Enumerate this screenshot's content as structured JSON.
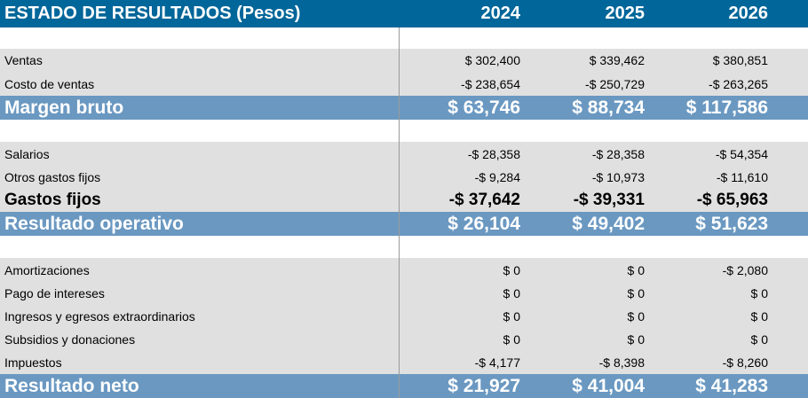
{
  "header": {
    "title": "ESTADO DE RESULTADOS (Pesos)",
    "years": [
      "2024",
      "2025",
      "2026"
    ]
  },
  "rows": {
    "ventas": {
      "label": "Ventas",
      "values": [
        "$ 302,400",
        "$ 339,462",
        "$ 380,851"
      ]
    },
    "costo_ventas": {
      "label": "Costo de ventas",
      "values": [
        "-$ 238,654",
        "-$ 250,729",
        "-$ 263,265"
      ]
    },
    "margen_bruto": {
      "label": "Margen bruto",
      "values": [
        "$ 63,746",
        "$ 88,734",
        "$ 117,586"
      ]
    },
    "salarios": {
      "label": "Salarios",
      "values": [
        "-$ 28,358",
        "-$ 28,358",
        "-$ 54,354"
      ]
    },
    "otros_gastos_fijos": {
      "label": "Otros gastos fijos",
      "values": [
        "-$ 9,284",
        "-$ 10,973",
        "-$ 11,610"
      ]
    },
    "gastos_fijos": {
      "label": "Gastos fijos",
      "values": [
        "-$ 37,642",
        "-$ 39,331",
        "-$ 65,963"
      ]
    },
    "resultado_operativo": {
      "label": "Resultado operativo",
      "values": [
        "$ 26,104",
        "$ 49,402",
        "$ 51,623"
      ]
    },
    "amortizaciones": {
      "label": "Amortizaciones",
      "values": [
        "$ 0",
        "$ 0",
        "-$ 2,080"
      ]
    },
    "pago_intereses": {
      "label": "Pago de intereses",
      "values": [
        "$ 0",
        "$ 0",
        "$ 0"
      ]
    },
    "ingresos_egresos": {
      "label": "Ingresos y egresos extraordinarios",
      "values": [
        "$ 0",
        "$ 0",
        "$ 0"
      ]
    },
    "subsidios": {
      "label": "Subsidios y donaciones",
      "values": [
        "$ 0",
        "$ 0",
        "$ 0"
      ]
    },
    "impuestos": {
      "label": "Impuestos",
      "values": [
        "-$ 4,177",
        "-$ 8,398",
        "-$ 8,260"
      ]
    },
    "resultado_neto": {
      "label": "Resultado neto",
      "values": [
        "$ 21,927",
        "$ 41,004",
        "$ 41,283"
      ]
    }
  },
  "colors": {
    "header_bg": "#016699",
    "band_bg": "#6a98c1",
    "row_bg": "#e0e0e0"
  }
}
